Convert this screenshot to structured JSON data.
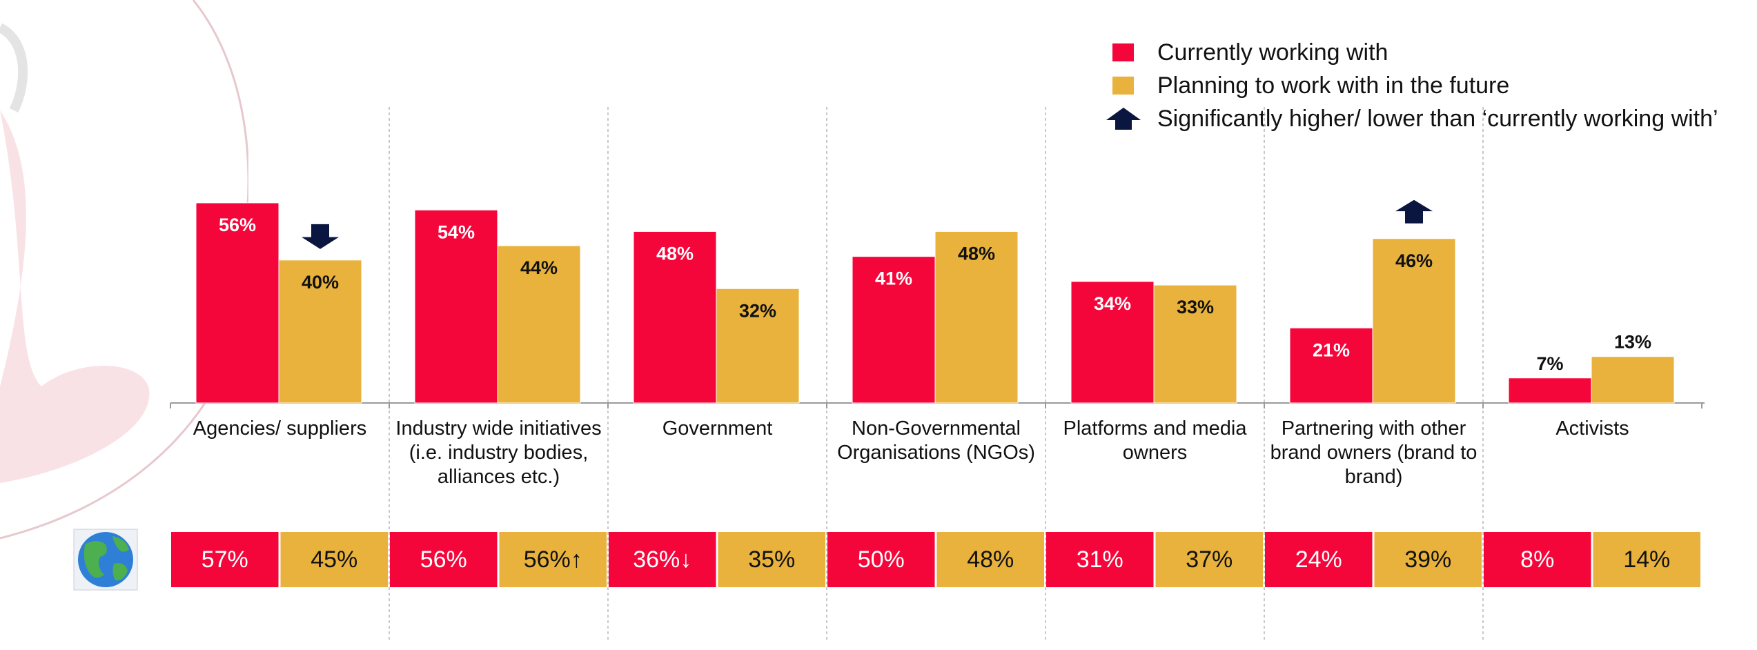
{
  "colors": {
    "current": "#F5063A",
    "future": "#E8B23C",
    "arrow": "#0B1640",
    "grid": "#b5b5b5",
    "axis": "#9a9a9a"
  },
  "legend": {
    "current_label": "Currently working with",
    "future_label": "Planning to work with in the future",
    "arrow_label": "Significantly higher/ lower than ‘currently working with’",
    "arrow_icon": "up-arrow-icon"
  },
  "globe_icon": "globe-icon",
  "chart_data": {
    "type": "bar",
    "categories": [
      [
        "Agencies/ suppliers"
      ],
      [
        "Industry wide initiatives",
        "(i.e. industry bodies,",
        "alliances etc.)"
      ],
      [
        "Government"
      ],
      [
        "Non-Governmental",
        "Organisations (NGOs)"
      ],
      [
        "Platforms and media",
        "owners"
      ],
      [
        "Partnering with other",
        "brand owners (brand to",
        "brand)"
      ],
      [
        "Activists"
      ]
    ],
    "series": [
      {
        "name": "Currently working with",
        "values": [
          56,
          54,
          48,
          41,
          34,
          21,
          7
        ],
        "labels": [
          "56%",
          "54%",
          "48%",
          "41%",
          "34%",
          "21%",
          "7%"
        ]
      },
      {
        "name": "Planning to work with in the future",
        "values": [
          40,
          44,
          32,
          48,
          33,
          46,
          13
        ],
        "labels": [
          "40%",
          "44%",
          "32%",
          "48%",
          "33%",
          "46%",
          "13%"
        ]
      }
    ],
    "significance_markers": [
      "down",
      null,
      null,
      null,
      null,
      "up",
      null
    ],
    "ylim": [
      0,
      60
    ],
    "global_row": {
      "current": [
        "57%",
        "56%",
        "36%",
        "50%",
        "31%",
        "24%",
        "8%"
      ],
      "future": [
        "45%",
        "56%",
        "35%",
        "48%",
        "37%",
        "39%",
        "14%"
      ],
      "current_markers": [
        null,
        null,
        "↓",
        null,
        null,
        null,
        null
      ],
      "future_markers": [
        null,
        "↑",
        null,
        null,
        null,
        null,
        null
      ]
    }
  }
}
